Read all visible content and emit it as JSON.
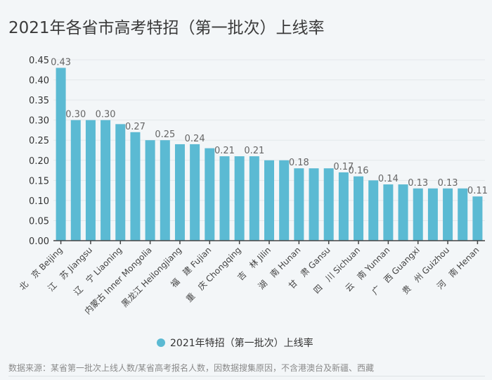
{
  "title": "2021年各省市高考特招（第一批次）上线率",
  "footer": "数据来源：某省第一批次上线人数/某省高考报名人数，因数据搜集原因，不含港澳台及新疆、西藏",
  "colors": {
    "bar": "#5bbad3",
    "axis": "#444444",
    "grid": "#e3e8eb",
    "label": "#666666"
  },
  "chart_data": {
    "type": "bar",
    "title": "2021年各省市高考特招（第一批次）上线率",
    "ylim": [
      0,
      0.45
    ],
    "yticks": [
      "0.00",
      "0.05",
      "0.10",
      "0.15",
      "0.20",
      "0.25",
      "0.30",
      "0.35",
      "0.40",
      "0.45"
    ],
    "grid": true,
    "legend": {
      "position": "bottom",
      "entries": [
        "2021年特招（第一批次）上线率"
      ]
    },
    "categories": [
      "北　京 Beijing",
      "",
      "江　苏 Jiangsu",
      "",
      "辽　宁 Liaoning",
      "",
      "内蒙古 Inner Mongolia",
      "",
      "黑龙江 Heilongjiang",
      "",
      "福　建 Fujian",
      "",
      "重　庆 Chongqing",
      "",
      "吉　林 Jilin",
      "",
      "湖　南 Hunan",
      "",
      "甘　肃 Gansu",
      "",
      "四　川 Sichuan",
      "",
      "云　南 Yunnan",
      "",
      "广　西 Guangxi",
      "",
      "贵　州 Guizhou",
      "",
      "河　南 Henan"
    ],
    "series": [
      {
        "name": "2021年特招（第一批次）上线率",
        "values": [
          0.43,
          0.3,
          0.3,
          0.3,
          0.29,
          0.27,
          0.25,
          0.25,
          0.24,
          0.24,
          0.23,
          0.21,
          0.21,
          0.21,
          0.2,
          0.2,
          0.18,
          0.18,
          0.18,
          0.17,
          0.16,
          0.15,
          0.14,
          0.14,
          0.13,
          0.13,
          0.13,
          0.13,
          0.11
        ],
        "data_labels": [
          "0.43",
          "0.30",
          "",
          "0.30",
          "",
          "0.27",
          "",
          "0.25",
          "",
          "0.24",
          "",
          "0.21",
          "",
          "0.21",
          "",
          "",
          "0.18",
          "",
          "",
          "0.17",
          "0.16",
          "",
          "0.14",
          "",
          "0.13",
          "",
          "0.13",
          "",
          "0.11"
        ]
      }
    ]
  }
}
